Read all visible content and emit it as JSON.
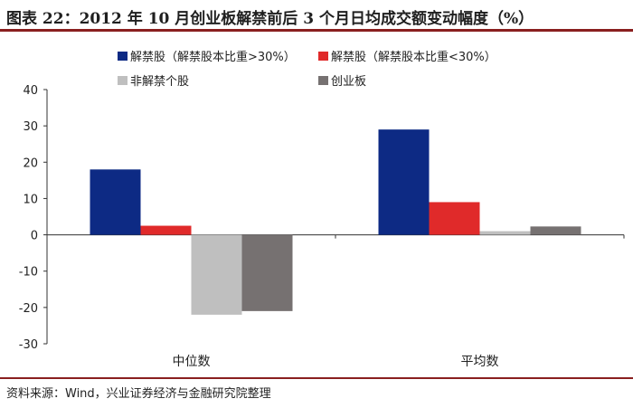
{
  "title": "图表 22：2012 年 10 月创业板解禁前后 3 个月日均成交额变动幅度（%）",
  "source": "资料来源：Wind，兴业证券经济与金融研究院整理",
  "chart_data": {
    "type": "bar",
    "categories": [
      "中位数",
      "平均数"
    ],
    "series": [
      {
        "name": "解禁股（解禁股本比重>30%）",
        "color": "#0d2a84",
        "values": [
          18,
          29
        ]
      },
      {
        "name": "解禁股（解禁股本比重<30%）",
        "color": "#e02a2a",
        "values": [
          2.5,
          9
        ]
      },
      {
        "name": "非解禁个股",
        "color": "#bfbfbf",
        "values": [
          -22,
          1
        ]
      },
      {
        "name": "创业板",
        "color": "#767171",
        "values": [
          -21,
          2.3
        ]
      }
    ],
    "ylim": [
      -30,
      40
    ],
    "yticks": [
      40,
      30,
      20,
      10,
      0,
      -10,
      -20,
      -30
    ],
    "legend_position": "top",
    "grid": false
  }
}
